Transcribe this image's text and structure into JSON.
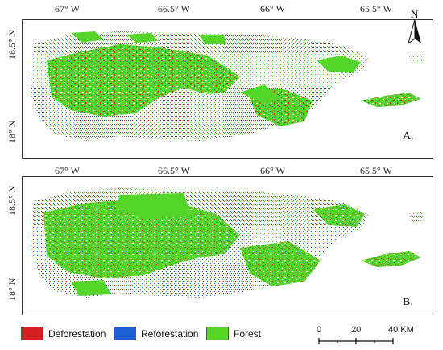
{
  "panels": [
    {
      "letter": "A.",
      "lon_labels": [
        "67° W",
        "66.5° W",
        "66° W",
        "65.5° W"
      ],
      "lat_labels": [
        "18.5° N",
        "18° N"
      ],
      "north_label": "N"
    },
    {
      "letter": "B.",
      "lon_labels": [
        "67° W",
        "66.5° W",
        "66° W",
        "65.5° W"
      ],
      "lat_labels": [
        "18.5° N",
        "18° N"
      ]
    }
  ],
  "legend": {
    "items": [
      {
        "label": "Deforestation",
        "color": "#d42020"
      },
      {
        "label": "Reforestation",
        "color": "#1f5fd6"
      },
      {
        "label": "Forest",
        "color": "#55d52a"
      }
    ]
  },
  "scale_bar": {
    "labels": [
      "0",
      "20",
      "40 KM"
    ]
  },
  "colors": {
    "forest": "#55d52a",
    "deforestation": "#d42020",
    "reforestation": "#1f5fd6"
  }
}
